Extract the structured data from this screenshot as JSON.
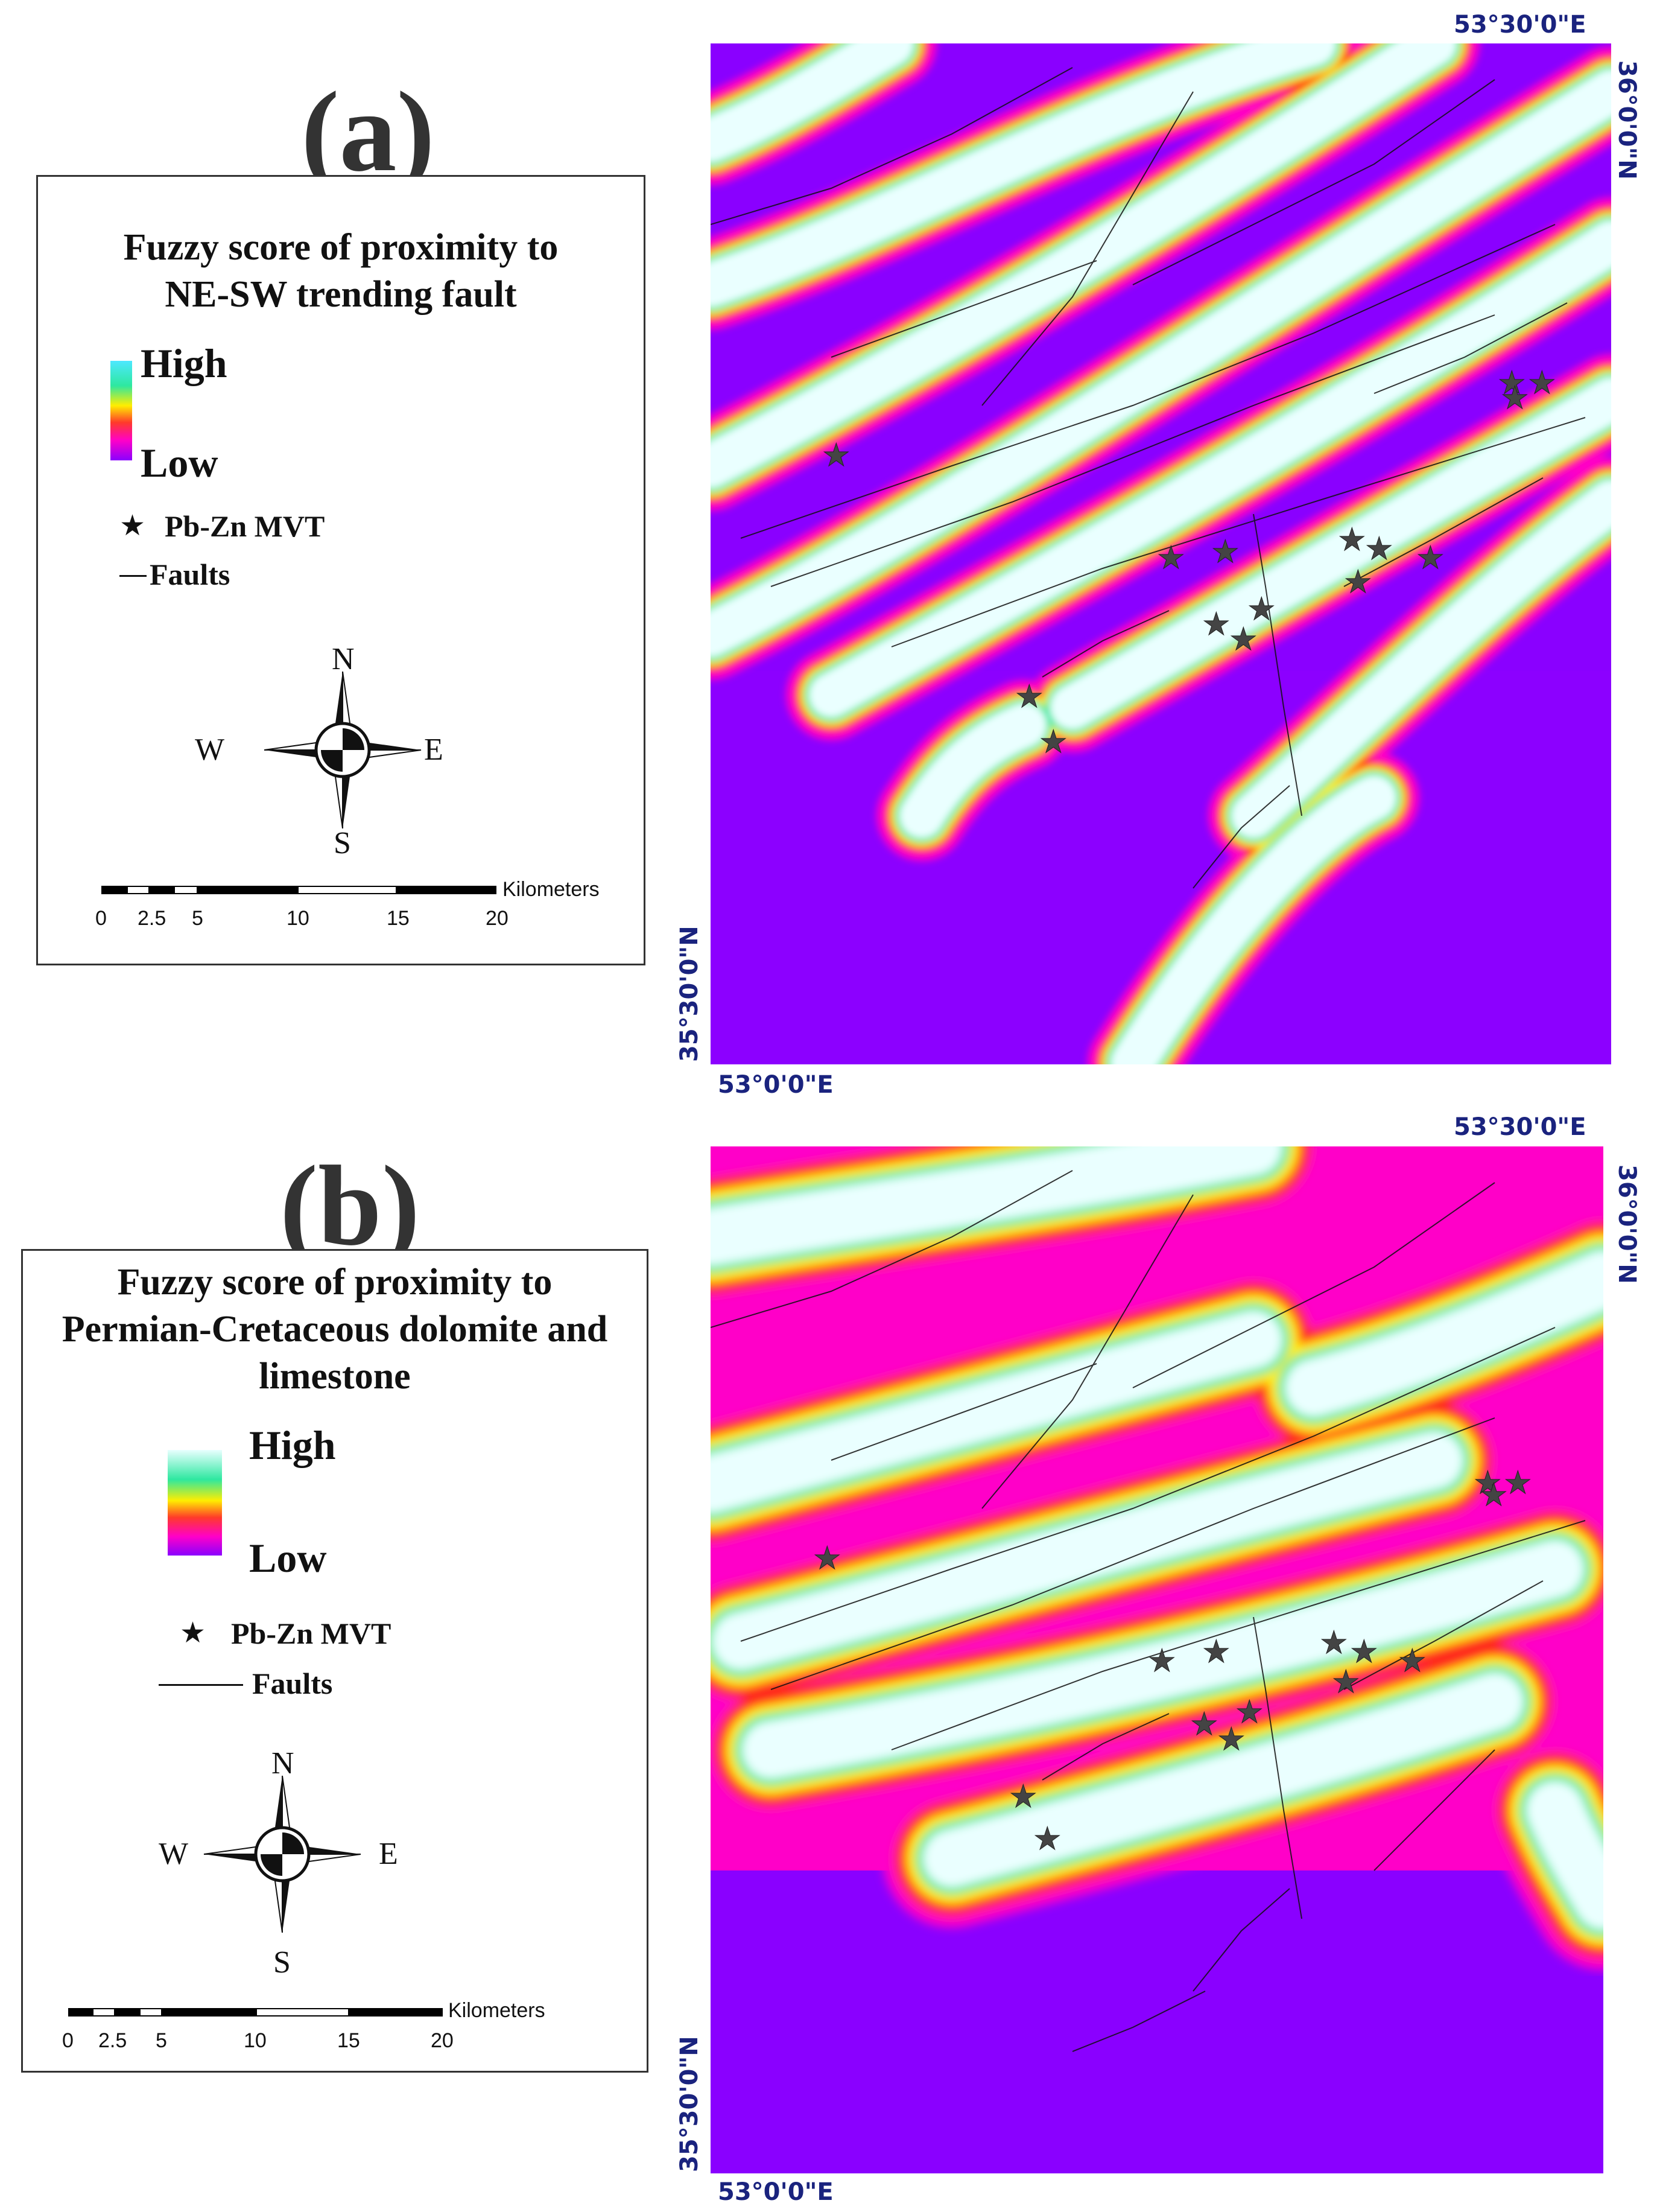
{
  "panels": [
    {
      "letter": "(a)",
      "legend": {
        "title_line1": "Fuzzy score of proximity to",
        "title_line2": "NE-SW trending fault",
        "title_line3": "",
        "high_label": "High",
        "low_label": "Low",
        "ramp_colors": [
          "#4de8ff",
          "#2ee8a0",
          "#ffee00",
          "#ff3a2a",
          "#ff00c8",
          "#8a00ff"
        ],
        "star_label": "Pb-Zn MVT",
        "fault_label": "Faults",
        "compass": {
          "n": "N",
          "s": "S",
          "e": "E",
          "w": "W"
        },
        "scale": {
          "ticks": [
            "0",
            "2.5",
            "5",
            "10",
            "15",
            "20"
          ],
          "unit": "Kilometers"
        }
      },
      "coords": {
        "top_right_lon": "53°30'0\"E",
        "right_lat": "36°0'0\"N",
        "left_lat": "35°30'0\"N",
        "bottom_left_lon": "53°0'0\"E"
      }
    },
    {
      "letter": "(b)",
      "legend": {
        "title_line1": "Fuzzy score of proximity to",
        "title_line2": "Permian-Cretaceous dolomite and",
        "title_line3": "limestone",
        "high_label": "High",
        "low_label": "Low",
        "ramp_colors": [
          "#e8ffff",
          "#2ee8a0",
          "#ffee00",
          "#ff3a2a",
          "#ff00c8",
          "#8a00ff"
        ],
        "star_label": "Pb-Zn MVT",
        "fault_label": "Faults",
        "compass": {
          "n": "N",
          "s": "S",
          "e": "E",
          "w": "W"
        },
        "scale": {
          "ticks": [
            "0",
            "2.5",
            "5",
            "10",
            "15",
            "20"
          ],
          "unit": "Kilometers"
        }
      },
      "coords": {
        "top_right_lon": "53°30'0\"E",
        "right_lat": "36°0'0\"N",
        "left_lat": "35°30'0\"N",
        "bottom_left_lon": "53°0'0\"E"
      }
    }
  ],
  "colors": {
    "background_low": "#8a00ff",
    "mid_magenta": "#ff00c8",
    "mid_red": "#ff2a1a",
    "mid_yellow": "#ffee00",
    "mid_green": "#2ee8a0",
    "high": "#e8ffff",
    "coord_text": "#1a237e"
  },
  "icons": [
    "north-arrow-compass-icon",
    "star-icon"
  ]
}
